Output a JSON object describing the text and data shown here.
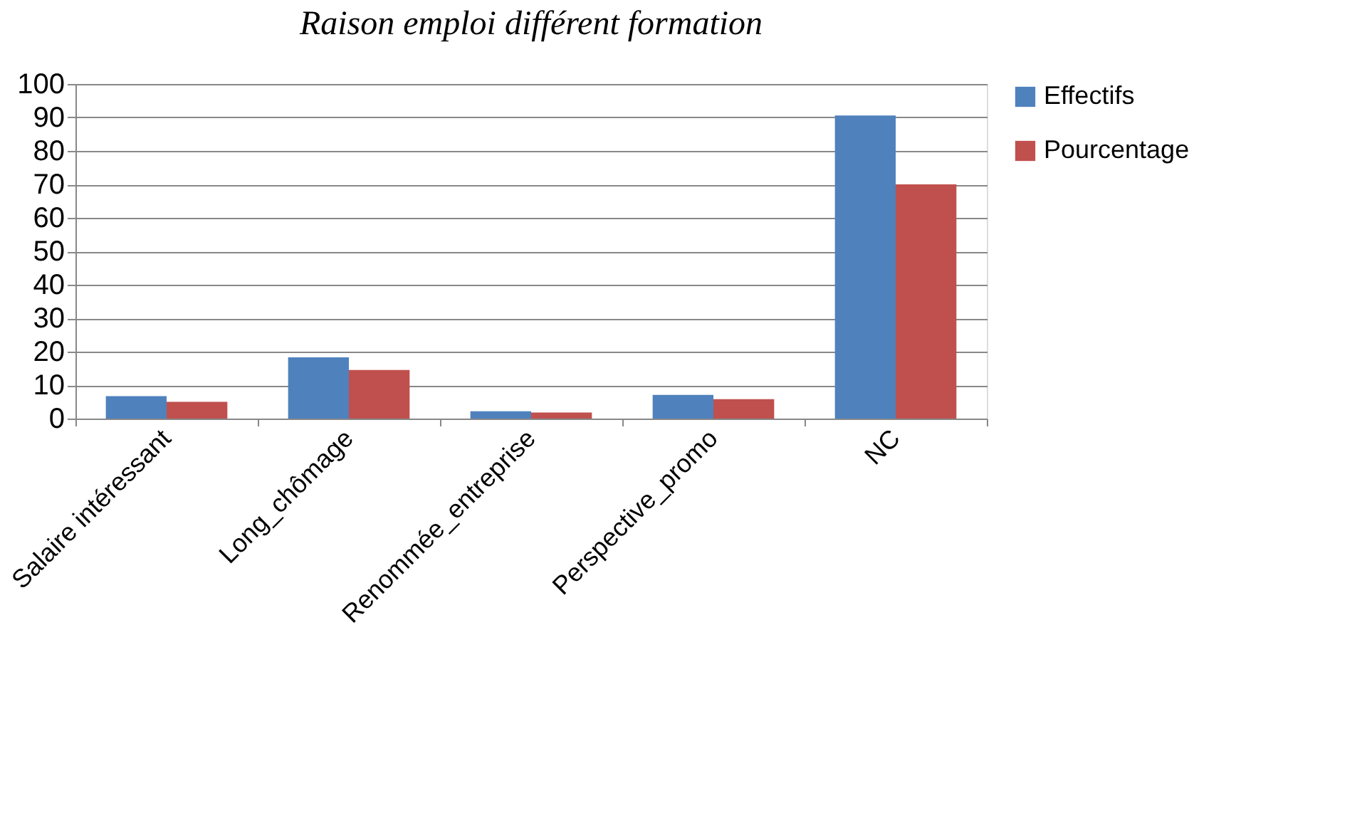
{
  "chart_data": {
    "type": "bar",
    "title": "Raison emploi différent formation",
    "categories": [
      "Salaire intéressant",
      "Long_chômage",
      "Renommée_entreprise",
      "Perspective_promo",
      "NC"
    ],
    "series": [
      {
        "name": "Effectifs",
        "color": "#4f81bd",
        "values": [
          6.7,
          18.3,
          2.2,
          7.1,
          90.6
        ]
      },
      {
        "name": "Pourcentage",
        "color": "#c0504d",
        "values": [
          5,
          14.5,
          1.8,
          5.8,
          70
        ]
      }
    ],
    "ylim": [
      0,
      100
    ],
    "yticks": [
      0,
      10,
      20,
      30,
      40,
      50,
      60,
      70,
      80,
      90,
      100
    ],
    "grid": "y",
    "legend": "right"
  }
}
